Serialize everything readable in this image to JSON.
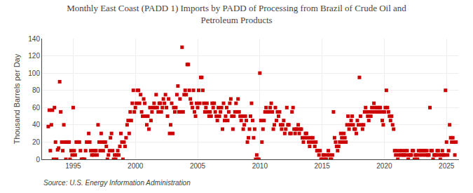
{
  "chart_data": {
    "type": "scatter",
    "title": "Monthly East Coast (PADD 1) Imports by PADD of Processing from Brazil of Crude Oil and\nPetroleum Products",
    "y_label": "Thousand Barrels per Day",
    "annotations": [
      "Source: U.S. Energy Information Administration"
    ],
    "xlim": [
      1992.5,
      2026.0
    ],
    "ylim": [
      0,
      140
    ],
    "xticks": [
      1995,
      2000,
      2005,
      2010,
      2015,
      2020,
      2025
    ],
    "yticks": [
      0,
      20,
      40,
      60,
      80,
      100,
      120,
      140
    ],
    "grid": true,
    "marker": "square",
    "color": "#CC0000",
    "x": [
      1993,
      1993.083333,
      1993.166667,
      1993.25,
      1993.333333,
      1993.416667,
      1993.5,
      1993.583333,
      1993.666667,
      1993.75,
      1993.833333,
      1993.916667,
      1994,
      1994.083333,
      1994.166667,
      1994.25,
      1994.333333,
      1994.416667,
      1994.5,
      1994.583333,
      1994.666667,
      1994.75,
      1994.833333,
      1994.916667,
      1995,
      1995.083333,
      1995.166667,
      1995.25,
      1995.333333,
      1995.416667,
      1995.5,
      1995.583333,
      1995.666667,
      1995.75,
      1995.833333,
      1995.916667,
      1996,
      1996.083333,
      1996.166667,
      1996.25,
      1996.333333,
      1996.416667,
      1996.5,
      1996.583333,
      1996.666667,
      1996.75,
      1996.833333,
      1996.916667,
      1997,
      1997.083333,
      1997.166667,
      1997.25,
      1997.333333,
      1997.416667,
      1997.5,
      1997.583333,
      1997.666667,
      1997.75,
      1997.833333,
      1997.916667,
      1998,
      1998.083333,
      1998.166667,
      1998.25,
      1998.333333,
      1998.416667,
      1998.5,
      1998.583333,
      1998.666667,
      1998.75,
      1998.833333,
      1998.916667,
      1999,
      1999.083333,
      1999.166667,
      1999.25,
      1999.333333,
      1999.416667,
      1999.5,
      1999.583333,
      1999.666667,
      1999.75,
      1999.833333,
      1999.916667,
      2000,
      2000.083333,
      2000.166667,
      2000.25,
      2000.333333,
      2000.416667,
      2000.5,
      2000.583333,
      2000.666667,
      2000.75,
      2000.833333,
      2000.916667,
      2001,
      2001.083333,
      2001.166667,
      2001.25,
      2001.333333,
      2001.416667,
      2001.5,
      2001.583333,
      2001.666667,
      2001.75,
      2001.833333,
      2001.916667,
      2002,
      2002.083333,
      2002.166667,
      2002.25,
      2002.333333,
      2002.416667,
      2002.5,
      2002.583333,
      2002.666667,
      2002.75,
      2002.833333,
      2002.916667,
      2003,
      2003.083333,
      2003.166667,
      2003.25,
      2003.333333,
      2003.416667,
      2003.5,
      2003.583333,
      2003.666667,
      2003.75,
      2003.833333,
      2003.916667,
      2004,
      2004.083333,
      2004.166667,
      2004.25,
      2004.333333,
      2004.416667,
      2004.5,
      2004.583333,
      2004.666667,
      2004.75,
      2004.833333,
      2004.916667,
      2005,
      2005.083333,
      2005.166667,
      2005.25,
      2005.333333,
      2005.416667,
      2005.5,
      2005.583333,
      2005.666667,
      2005.75,
      2005.833333,
      2005.916667,
      2006,
      2006.083333,
      2006.166667,
      2006.25,
      2006.333333,
      2006.416667,
      2006.5,
      2006.583333,
      2006.666667,
      2006.75,
      2006.833333,
      2006.916667,
      2007,
      2007.083333,
      2007.166667,
      2007.25,
      2007.333333,
      2007.416667,
      2007.5,
      2007.583333,
      2007.666667,
      2007.75,
      2007.833333,
      2007.916667,
      2008,
      2008.083333,
      2008.166667,
      2008.25,
      2008.333333,
      2008.416667,
      2008.5,
      2008.583333,
      2008.666667,
      2008.75,
      2008.833333,
      2008.916667,
      2009,
      2009.083333,
      2009.166667,
      2009.25,
      2009.333333,
      2009.416667,
      2009.5,
      2009.583333,
      2009.666667,
      2009.75,
      2009.833333,
      2009.916667,
      2010,
      2010.083333,
      2010.166667,
      2010.25,
      2010.333333,
      2010.416667,
      2010.5,
      2010.583333,
      2010.666667,
      2010.75,
      2010.833333,
      2010.916667,
      2011,
      2011.083333,
      2011.166667,
      2011.25,
      2011.333333,
      2011.416667,
      2011.5,
      2011.583333,
      2011.666667,
      2011.75,
      2011.833333,
      2011.916667,
      2012,
      2012.083333,
      2012.166667,
      2012.25,
      2012.333333,
      2012.416667,
      2012.5,
      2012.583333,
      2012.666667,
      2012.75,
      2012.833333,
      2012.916667,
      2013,
      2013.083333,
      2013.166667,
      2013.25,
      2013.333333,
      2013.416667,
      2013.5,
      2013.583333,
      2013.666667,
      2013.75,
      2013.833333,
      2013.916667,
      2014,
      2014.083333,
      2014.166667,
      2014.25,
      2014.333333,
      2014.416667,
      2014.5,
      2014.583333,
      2014.666667,
      2014.75,
      2014.833333,
      2014.916667,
      2015,
      2015.083333,
      2015.166667,
      2015.25,
      2015.333333,
      2015.416667,
      2015.5,
      2015.583333,
      2015.666667,
      2015.75,
      2015.833333,
      2015.916667,
      2016,
      2016.083333,
      2016.166667,
      2016.25,
      2016.333333,
      2016.416667,
      2016.5,
      2016.583333,
      2016.666667,
      2016.75,
      2016.833333,
      2016.916667,
      2017,
      2017.083333,
      2017.166667,
      2017.25,
      2017.333333,
      2017.416667,
      2017.5,
      2017.583333,
      2017.666667,
      2017.75,
      2017.833333,
      2017.916667,
      2018,
      2018.083333,
      2018.166667,
      2018.25,
      2018.333333,
      2018.416667,
      2018.5,
      2018.583333,
      2018.666667,
      2018.75,
      2018.833333,
      2018.916667,
      2019,
      2019.083333,
      2019.166667,
      2019.25,
      2019.333333,
      2019.416667,
      2019.5,
      2019.583333,
      2019.666667,
      2019.75,
      2019.833333,
      2019.916667,
      2020,
      2020.083333,
      2020.166667,
      2020.25,
      2020.333333,
      2020.416667,
      2020.5,
      2020.583333,
      2020.666667,
      2020.75,
      2020.833333,
      2020.916667,
      2021,
      2021.083333,
      2021.166667,
      2021.25,
      2021.333333,
      2021.416667,
      2021.5,
      2021.583333,
      2021.666667,
      2021.75,
      2021.833333,
      2021.916667,
      2022,
      2022.083333,
      2022.166667,
      2022.25,
      2022.333333,
      2022.416667,
      2022.5,
      2022.583333,
      2022.666667,
      2022.75,
      2022.833333,
      2022.916667,
      2023,
      2023.083333,
      2023.166667,
      2023.25,
      2023.333333,
      2023.416667,
      2023.5,
      2023.583333,
      2023.666667,
      2023.75,
      2023.833333,
      2023.916667,
      2024,
      2024.083333,
      2024.166667,
      2024.25,
      2024.333333,
      2024.416667,
      2024.5,
      2024.583333,
      2024.666667,
      2024.75,
      2024.833333,
      2024.916667,
      2025,
      2025.083333,
      2025.166667,
      2025.25,
      2025.333333,
      2025.416667,
      2025.5,
      2025.583333,
      2025.666667,
      2025.75
    ],
    "values": [
      38,
      57,
      10,
      40,
      57,
      0,
      60,
      20,
      0,
      11,
      13,
      90,
      55,
      20,
      10,
      40,
      20,
      0,
      20,
      20,
      20,
      0,
      10,
      5,
      60,
      10,
      5,
      20,
      20,
      20,
      20,
      10,
      0,
      0,
      0,
      0,
      10,
      20,
      20,
      30,
      20,
      10,
      5,
      10,
      5,
      10,
      10,
      5,
      40,
      20,
      10,
      30,
      20,
      10,
      20,
      20,
      15,
      0,
      5,
      10,
      25,
      30,
      10,
      0,
      5,
      0,
      5,
      10,
      5,
      15,
      30,
      20,
      0,
      20,
      15,
      25,
      40,
      45,
      30,
      55,
      45,
      65,
      80,
      55,
      60,
      65,
      80,
      80,
      65,
      75,
      55,
      50,
      70,
      65,
      50,
      40,
      50,
      35,
      60,
      45,
      55,
      60,
      65,
      60,
      75,
      60,
      55,
      65,
      65,
      55,
      60,
      70,
      65,
      75,
      60,
      50,
      70,
      30,
      40,
      65,
      30,
      60,
      55,
      60,
      75,
      85,
      55,
      70,
      55,
      130,
      55,
      75,
      80,
      75,
      110,
      110,
      80,
      70,
      65,
      60,
      80,
      55,
      50,
      65,
      60,
      80,
      65,
      95,
      95,
      80,
      65,
      55,
      60,
      65,
      55,
      50,
      55,
      50,
      65,
      60,
      65,
      55,
      50,
      45,
      60,
      50,
      55,
      60,
      35,
      65,
      45,
      50,
      60,
      45,
      55,
      65,
      70,
      50,
      35,
      50,
      55,
      65,
      55,
      70,
      55,
      50,
      45,
      50,
      35,
      40,
      50,
      45,
      20,
      25,
      35,
      50,
      65,
      45,
      25,
      35,
      0,
      5,
      0,
      0,
      100,
      45,
      20,
      35,
      45,
      55,
      60,
      55,
      55,
      55,
      60,
      65,
      55,
      35,
      40,
      60,
      45,
      55,
      50,
      55,
      40,
      35,
      40,
      45,
      30,
      35,
      60,
      40,
      40,
      30,
      30,
      55,
      60,
      35,
      30,
      35,
      35,
      40,
      30,
      35,
      35,
      25,
      20,
      25,
      30,
      30,
      25,
      20,
      15,
      25,
      20,
      25,
      20,
      15,
      20,
      10,
      10,
      5,
      10,
      0,
      0,
      5,
      5,
      0,
      0,
      5,
      10,
      5,
      0,
      0,
      5,
      55,
      25,
      20,
      15,
      10,
      15,
      20,
      30,
      25,
      20,
      30,
      25,
      20,
      40,
      50,
      35,
      40,
      45,
      50,
      40,
      35,
      35,
      30,
      45,
      40,
      95,
      50,
      40,
      35,
      40,
      55,
      60,
      55,
      50,
      45,
      55,
      50,
      60,
      55,
      65,
      60,
      55,
      60,
      55,
      60,
      60,
      55,
      45,
      40,
      55,
      60,
      80,
      60,
      55,
      50,
      45,
      50,
      40,
      35,
      10,
      5,
      10,
      0,
      5,
      10,
      5,
      10,
      5,
      5,
      10,
      5,
      10,
      0,
      5,
      5,
      5,
      10,
      10,
      0,
      5,
      5,
      0,
      10,
      5,
      10,
      10,
      5,
      10,
      10,
      5,
      10,
      5,
      5,
      60,
      10,
      10,
      0,
      5,
      5,
      5,
      10,
      10,
      5,
      0,
      5,
      10,
      5,
      5,
      80,
      20,
      5,
      10,
      40,
      25,
      20,
      25,
      20,
      5,
      20
    ]
  }
}
